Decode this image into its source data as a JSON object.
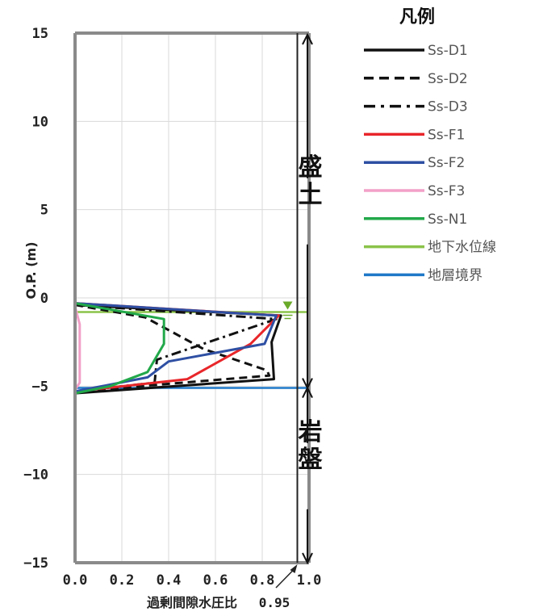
{
  "chart_data": {
    "type": "line",
    "xlabel": "過剰間隙水圧比",
    "ylabel": "O.P. (m)",
    "xlim": [
      0.0,
      1.0
    ],
    "ylim": [
      -15,
      15
    ],
    "x_ticks": [
      "0.0",
      "0.2",
      "0.4",
      "0.6",
      "0.8",
      "1.0"
    ],
    "y_ticks": [
      "15",
      "10",
      "5",
      "0",
      "−5",
      "−10",
      "−15"
    ],
    "grid": true,
    "legend_title": "凡例",
    "legend_position": "right",
    "annotation_x": "0.95",
    "annotation_x_value": 0.95,
    "groundwater_level": -0.8,
    "layer_boundary": -5.1,
    "zones": [
      {
        "label": "盛土",
        "top": 15,
        "bottom": -5.1
      },
      {
        "label": "岩盤",
        "top": -5.1,
        "bottom": -15
      }
    ],
    "series": [
      {
        "name": "Ss-D1",
        "color": "#111111",
        "dash": "solid",
        "points": [
          [
            0.0,
            -0.4
          ],
          [
            0.88,
            -1.0
          ],
          [
            0.84,
            -2.5
          ],
          [
            0.85,
            -4.6
          ],
          [
            0.0,
            -5.4
          ]
        ]
      },
      {
        "name": "Ss-D2",
        "color": "#111111",
        "dash": "dashed",
        "points": [
          [
            0.0,
            -0.4
          ],
          [
            0.3,
            -1.1
          ],
          [
            0.55,
            -2.9
          ],
          [
            0.82,
            -4.1
          ],
          [
            0.83,
            -4.4
          ],
          [
            0.0,
            -5.3
          ]
        ]
      },
      {
        "name": "Ss-D3",
        "color": "#111111",
        "dash": "dashdot",
        "points": [
          [
            0.0,
            -0.4
          ],
          [
            0.86,
            -1.2
          ],
          [
            0.35,
            -3.5
          ],
          [
            0.34,
            -4.8
          ],
          [
            0.0,
            -5.3
          ]
        ]
      },
      {
        "name": "Ss-F1",
        "color": "#e8262a",
        "dash": "solid",
        "points": [
          [
            0.0,
            -0.3
          ],
          [
            0.87,
            -1.0
          ],
          [
            0.75,
            -2.6
          ],
          [
            0.48,
            -4.6
          ],
          [
            0.0,
            -5.3
          ]
        ]
      },
      {
        "name": "Ss-F2",
        "color": "#2e4fa3",
        "dash": "solid",
        "points": [
          [
            0.0,
            -0.3
          ],
          [
            0.86,
            -1.0
          ],
          [
            0.81,
            -2.6
          ],
          [
            0.4,
            -3.6
          ],
          [
            0.31,
            -4.5
          ],
          [
            0.0,
            -5.3
          ]
        ]
      },
      {
        "name": "Ss-F3",
        "color": "#f2a0c8",
        "dash": "solid",
        "points": [
          [
            0.0,
            -0.5
          ],
          [
            0.02,
            -1.5
          ],
          [
            0.02,
            -4.8
          ],
          [
            0.0,
            -5.2
          ]
        ]
      },
      {
        "name": "Ss-N1",
        "color": "#22a84a",
        "dash": "solid",
        "points": [
          [
            0.0,
            -0.3
          ],
          [
            0.38,
            -1.2
          ],
          [
            0.38,
            -2.6
          ],
          [
            0.31,
            -4.2
          ],
          [
            0.15,
            -5.0
          ],
          [
            0.0,
            -5.4
          ]
        ]
      }
    ],
    "reference_lines": [
      {
        "name": "地下水位線",
        "color": "#8bc34a"
      },
      {
        "name": "地層境界",
        "color": "#1f78c8"
      }
    ]
  }
}
